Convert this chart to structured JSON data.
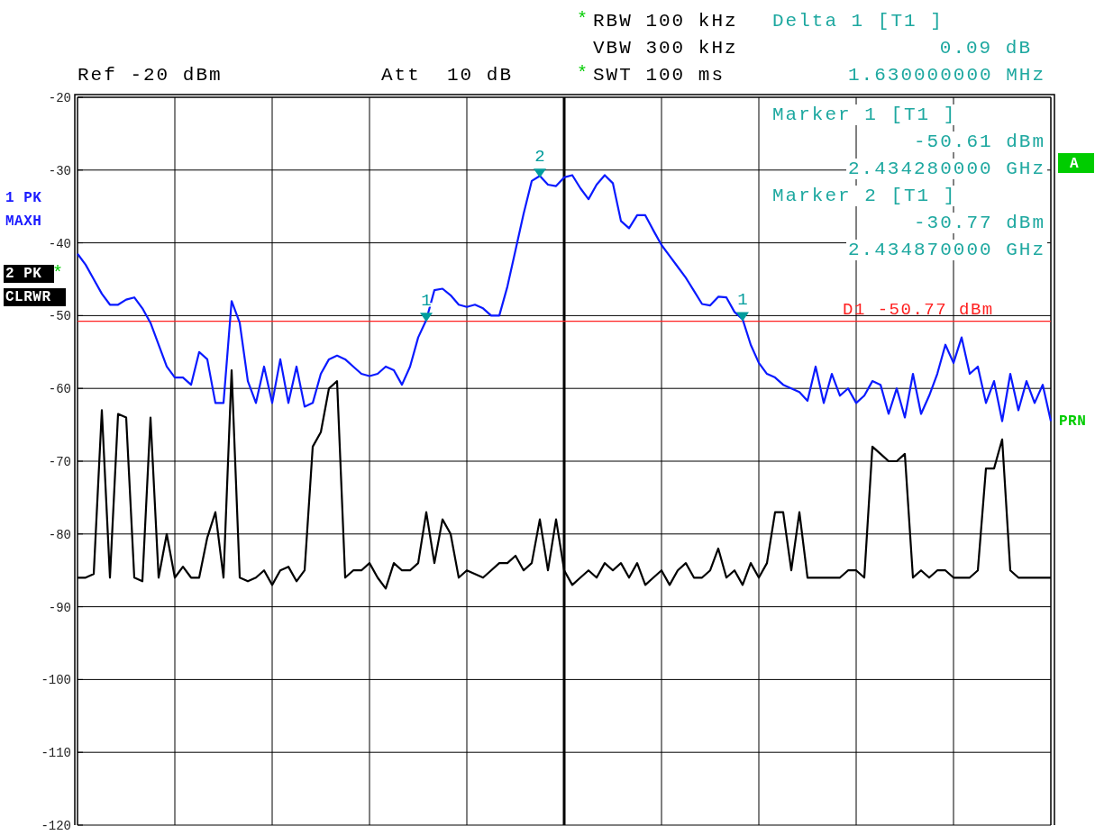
{
  "chart_data": {
    "type": "line",
    "categories": [
      null,
      null,
      null,
      null,
      null,
      null,
      null,
      null,
      null,
      null,
      null,
      null,
      null,
      null,
      null,
      null,
      null,
      null,
      null,
      null,
      null,
      null,
      null,
      null,
      null,
      null,
      null,
      null,
      null,
      null,
      null,
      null,
      null,
      null,
      null,
      null,
      null,
      null,
      null,
      null,
      null,
      null,
      null,
      null,
      null,
      null,
      null,
      null,
      null,
      null,
      null,
      null,
      null,
      null,
      null,
      null,
      null,
      null,
      null,
      null,
      null,
      null,
      null,
      null,
      null,
      null,
      null,
      null,
      null,
      null,
      null,
      null,
      null,
      null,
      null,
      null,
      null,
      null,
      null,
      null,
      null,
      null,
      null,
      null,
      null,
      null,
      null,
      null,
      null,
      null,
      null,
      null,
      null,
      null,
      null,
      null,
      null,
      null,
      null,
      null,
      null,
      null,
      null,
      null,
      null,
      null,
      null,
      null,
      null,
      null,
      null,
      null,
      null,
      null,
      null,
      null,
      null,
      null,
      null,
      null,
      null
    ],
    "series": [
      {
        "color": "#0a1aff",
        "values": [
          -41.5,
          -43,
          -45,
          -47,
          -48.5,
          -48.5,
          -47.8,
          -47.5,
          -49,
          -51,
          -54,
          -57,
          -58.5,
          -58.5,
          -59.5,
          -55,
          -56,
          -62,
          -62,
          -48,
          -51,
          -59,
          -62,
          -57,
          -62,
          -56,
          -62,
          -57,
          -62.5,
          -62,
          -58,
          -56,
          -55.5,
          -56,
          -57,
          -58,
          -58.3,
          -58,
          -57,
          -57.5,
          -59.5,
          -57,
          -53,
          -50.6,
          -46.5,
          -46.3,
          -47.2,
          -48.5,
          -48.8,
          -48.5,
          -49,
          -50,
          -50,
          -46,
          -41,
          -36,
          -31.5,
          -30.8,
          -32,
          -32.2,
          -31,
          -30.7,
          -32.5,
          -34,
          -32,
          -30.7,
          -31.8,
          -37,
          -38,
          -36.2,
          -36.2,
          -38.3,
          -40.3,
          -41.8,
          -43.3,
          -44.8,
          -46.6,
          -48.4,
          -48.6,
          -47.4,
          -47.5,
          -49.5,
          -50.5,
          -54,
          -56.5,
          -58,
          -58.5,
          -59.5,
          -60,
          -60.5,
          -61.7,
          -57,
          -62,
          -58,
          -61,
          -60,
          -62,
          -61,
          -59,
          -59.5,
          -63.5,
          -60,
          -64,
          -58,
          -63.5,
          -61,
          -58,
          -54,
          -56.5,
          -53,
          -58,
          -57,
          -62,
          -59,
          -64.5,
          -58,
          -63,
          -59,
          -62,
          -59.5,
          -64.5
        ]
      },
      {
        "color": "#000000",
        "values": [
          -86,
          -86,
          -85.5,
          -63,
          -86,
          -63.5,
          -64,
          -86,
          -86.5,
          -64,
          -86,
          -80,
          -86,
          -84.5,
          -86,
          -86,
          -80.5,
          -77,
          -86,
          -57.5,
          -86,
          -86.5,
          -86,
          -85,
          -87,
          -85,
          -84.5,
          -86.5,
          -85,
          -68,
          -66,
          -60,
          -59,
          -86,
          -85,
          -85,
          -84,
          -86,
          -87.5,
          -84,
          -85,
          -85,
          -84,
          -77,
          -84,
          -78,
          -80,
          -86,
          -85,
          -85.5,
          -86,
          -85,
          -84,
          -84,
          -83,
          -85,
          -84,
          -78,
          -85,
          -78,
          -85,
          -87,
          -86,
          -85,
          -86,
          -84,
          -85,
          -84,
          -86,
          -84,
          -87,
          -86,
          -85,
          -87,
          -85,
          -84,
          -86,
          -86,
          -85,
          -82,
          -86,
          -85,
          -87,
          -84,
          -86,
          -84,
          -77,
          -77,
          -85,
          -77,
          -86,
          -86,
          -86,
          -86,
          -86,
          -85,
          -85,
          -86,
          -68,
          -69,
          -70,
          -70,
          -69,
          -86,
          -85,
          -86,
          -85,
          -85,
          -86,
          -86,
          -86,
          -85,
          -71,
          -71,
          -67,
          -85,
          -86,
          -86,
          -86,
          -86,
          -86
        ]
      },
      {
        "type": "scatter",
        "name": "1",
        "marker": "triangle",
        "color": "#009c9c",
        "values": [
          null,
          null,
          null,
          null,
          null,
          null,
          null,
          null,
          null,
          null,
          null,
          null,
          null,
          null,
          null,
          null,
          null,
          null,
          null,
          null,
          null,
          null,
          null,
          null,
          null,
          null,
          null,
          null,
          null,
          null,
          null,
          null,
          null,
          null,
          null,
          null,
          null,
          null,
          null,
          null,
          null,
          null,
          null,
          -50.6,
          null,
          null,
          null,
          null,
          null,
          null,
          null,
          null,
          null,
          null,
          null,
          null,
          null,
          null,
          null,
          null,
          null,
          null,
          null,
          null,
          null,
          null,
          null,
          null,
          null,
          null,
          null,
          null,
          null,
          null,
          null,
          null,
          null,
          null,
          null,
          null,
          null,
          null,
          -50.5,
          null,
          null,
          null,
          null,
          null,
          null,
          null,
          null,
          null,
          null,
          null,
          null,
          null,
          null,
          null,
          null,
          null,
          null,
          null,
          null,
          null,
          null,
          null,
          null,
          null,
          null,
          null,
          null,
          null,
          null,
          null,
          null,
          null,
          null,
          null,
          null,
          null,
          null
        ]
      },
      {
        "type": "scatter",
        "name": "2",
        "marker": "triangle",
        "color": "#009c9c",
        "values": [
          null,
          null,
          null,
          null,
          null,
          null,
          null,
          null,
          null,
          null,
          null,
          null,
          null,
          null,
          null,
          null,
          null,
          null,
          null,
          null,
          null,
          null,
          null,
          null,
          null,
          null,
          null,
          null,
          null,
          null,
          null,
          null,
          null,
          null,
          null,
          null,
          null,
          null,
          null,
          null,
          null,
          null,
          null,
          null,
          null,
          null,
          null,
          null,
          null,
          null,
          null,
          null,
          null,
          null,
          null,
          null,
          null,
          -30.8,
          null,
          null,
          null,
          null,
          null,
          null,
          null,
          null,
          null,
          null,
          null,
          null,
          null,
          null,
          null,
          null,
          null,
          null,
          null,
          null,
          null,
          null,
          null,
          null,
          null,
          null,
          null,
          null,
          null,
          null,
          null,
          null,
          null,
          null,
          null,
          null,
          null,
          null,
          null,
          null,
          null,
          null,
          null,
          null,
          null,
          null,
          null,
          null,
          null,
          null,
          null,
          null,
          null,
          null,
          null,
          null,
          null,
          null,
          null,
          null,
          null,
          null,
          null
        ]
      }
    ],
    "ylim": [
      -120,
      -20
    ],
    "yticks": [
      -20,
      -30,
      -40,
      -50,
      -60,
      -70,
      -80,
      -90,
      -100,
      -110,
      -120
    ],
    "grid": true,
    "tick_labels": "y",
    "ref_lines": [
      {
        "axis": "y",
        "value": -50.77,
        "label": "D1 -50.77 dBm",
        "color": "#ff2020"
      }
    ],
    "annotations": [
      "*",
      "RBW 100 kHz",
      "VBW 300 kHz",
      "*",
      "SWT 100 ms",
      "Ref -20 dBm",
      "Att  10 dB",
      "Delta 1 [T1 ]",
      "0.09 dB",
      "1.630000000 MHz",
      "Marker 1 [T1 ]",
      "-50.61 dBm",
      "2.434280000 GHz",
      "Marker 2 [T1 ]",
      "-30.77 dBm",
      "2.434870000 GHz",
      "1 PK",
      "MAXH",
      "2 PK",
      "*",
      "CLRWR",
      "A",
      "PRN"
    ]
  }
}
